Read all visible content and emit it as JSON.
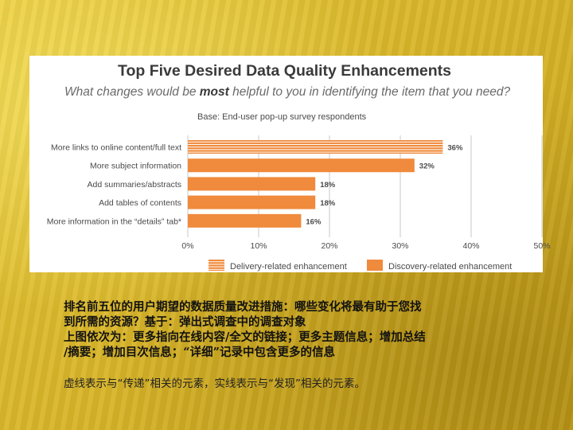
{
  "chart_data": {
    "type": "bar",
    "orientation": "horizontal",
    "title": "Top Five Desired Data Quality Enhancements",
    "subtitle_prefix": "What changes would be ",
    "subtitle_emphasis": "most",
    "subtitle_suffix": " helpful to you in identifying the item that you need?",
    "base_note": "Base: End-user pop-up survey respondents",
    "categories": [
      "More links to online content/full text",
      "More subject information",
      "Add summaries/abstracts",
      "Add tables of contents",
      "More information in the “details” tab*"
    ],
    "values": [
      36,
      32,
      18,
      18,
      16
    ],
    "value_labels": [
      "36%",
      "32%",
      "18%",
      "18%",
      "16%"
    ],
    "bar_kind": [
      "delivery",
      "discovery",
      "discovery",
      "discovery",
      "discovery"
    ],
    "x_ticks": [
      0,
      10,
      20,
      30,
      40,
      50
    ],
    "x_tick_labels": [
      "0%",
      "10%",
      "20%",
      "30%",
      "40%",
      "50%"
    ],
    "xlim": [
      0,
      50
    ],
    "grid": true,
    "legend_position": "bottom",
    "legend": [
      {
        "kind": "delivery",
        "label": "Delivery-related enhancement"
      },
      {
        "kind": "discovery",
        "label": "Discovery-related enhancement"
      }
    ],
    "colors": {
      "bar": "#f08a3c",
      "stripe": "#ffffff",
      "grid": "#c8c8c8",
      "title": "#3a3a3a",
      "subtitle": "#6a6a6a",
      "label": "#4a4a4a"
    }
  },
  "caption": {
    "lines": [
      "排名前五位的用户期望的数据质量改进措施：哪些变化将最有助于您找",
      "到所需的资源？基于：弹出式调查中的调查对象",
      "上图依次为：更多指向在线内容/全文的链接；更多主题信息；增加总结",
      "/摘要；增加目次信息；“详细”记录中包含更多的信息"
    ],
    "note": "虚线表示与“传递”相关的元素，实线表示与“发现”相关的元素。"
  }
}
